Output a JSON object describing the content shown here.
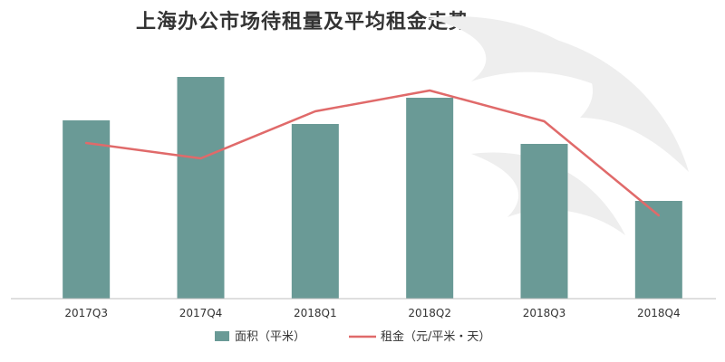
{
  "chart_data": {
    "type": "bar",
    "title": "上海办公市场待租量及平均租金走势",
    "categories": [
      "2017Q3",
      "2017Q4",
      "2018Q1",
      "2018Q2",
      "2018Q3",
      "2018Q4"
    ],
    "series": [
      {
        "name": "面积（平米）",
        "type": "bar",
        "color": "#6a9a96",
        "values": [
          197,
          245,
          193,
          222,
          171,
          108
        ]
      },
      {
        "name": "租金（元/平米・天）",
        "type": "line",
        "color": "#e06a6a",
        "values": [
          172,
          155,
          207,
          230,
          196,
          92
        ]
      }
    ],
    "ylim": [
      0,
      260
    ],
    "grid": false,
    "legend_position": "bottom"
  }
}
